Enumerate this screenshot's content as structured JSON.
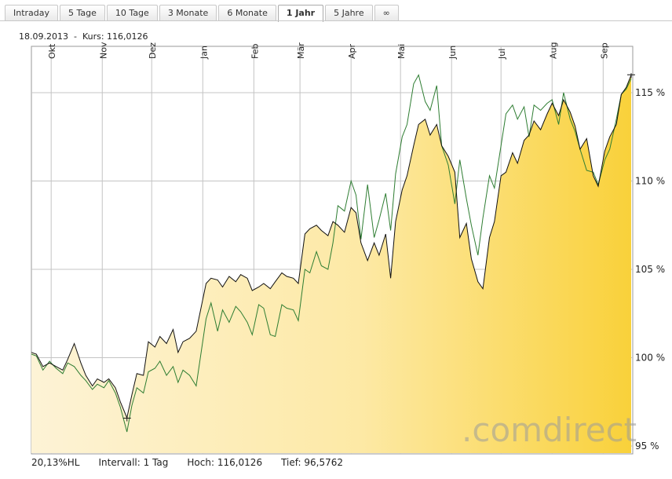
{
  "tabs": [
    {
      "label": "Intraday"
    },
    {
      "label": "5 Tage"
    },
    {
      "label": "10 Tage"
    },
    {
      "label": "3 Monate"
    },
    {
      "label": "6 Monate"
    },
    {
      "label": "1 Jahr",
      "active": true
    },
    {
      "label": "5 Jahre"
    },
    {
      "label": "∞"
    }
  ],
  "info": {
    "date": "18.09.2013",
    "kurs": "Kurs: 116,0126"
  },
  "footer": {
    "hl": "20,13%HL",
    "interval": "Intervall: 1 Tag",
    "high": "Hoch: 116,0126",
    "low": "Tief: 96,5762"
  },
  "watermark": {
    "text": ".comdirect"
  },
  "colors": {
    "main_line": "#111111",
    "compare_line": "#2e7d32",
    "fill_start": "#fdf3d6",
    "fill_end": "#f9d13a"
  },
  "chart_data": {
    "type": "area",
    "title": "",
    "xlabel": "",
    "ylabel": "",
    "x_range": [
      "2012-09-19",
      "2013-09-18"
    ],
    "ylim": [
      95,
      117
    ],
    "yticks": [
      95,
      100,
      105,
      110,
      115
    ],
    "ytick_labels": [
      "95 %",
      "100 %",
      "105 %",
      "110 %",
      "115 %"
    ],
    "months": [
      {
        "label": "Okt",
        "date": "2012-10-01"
      },
      {
        "label": "Nov",
        "date": "2012-11-01"
      },
      {
        "label": "Dez",
        "date": "2012-12-01"
      },
      {
        "label": "Jan",
        "date": "2013-01-01"
      },
      {
        "label": "Feb",
        "date": "2013-02-01"
      },
      {
        "label": "Mär",
        "date": "2013-03-01"
      },
      {
        "label": "Apr",
        "date": "2013-04-01"
      },
      {
        "label": "Mai",
        "date": "2013-05-01"
      },
      {
        "label": "Jun",
        "date": "2013-06-01"
      },
      {
        "label": "Jul",
        "date": "2013-07-01"
      },
      {
        "label": "Aug",
        "date": "2013-08-01"
      },
      {
        "label": "Sep",
        "date": "2013-09-01"
      }
    ],
    "grid": true,
    "series": [
      {
        "x": [
          "2012-09-19",
          "2012-09-22",
          "2012-09-26",
          "2012-09-30",
          "2012-10-04",
          "2012-10-08",
          "2012-10-11",
          "2012-10-15",
          "2012-10-19",
          "2012-10-22",
          "2012-10-26",
          "2012-10-29",
          "2012-11-02",
          "2012-11-05",
          "2012-11-09",
          "2012-11-12",
          "2012-11-16",
          "2012-11-19",
          "2012-11-22",
          "2012-11-26",
          "2012-11-29",
          "2012-12-03",
          "2012-12-06",
          "2012-12-10",
          "2012-12-14",
          "2012-12-17",
          "2012-12-20",
          "2012-12-24",
          "2012-12-28",
          "2013-01-03",
          "2013-01-06",
          "2013-01-10",
          "2013-01-13",
          "2013-01-17",
          "2013-01-21",
          "2013-01-24",
          "2013-01-28",
          "2013-01-31",
          "2013-02-04",
          "2013-02-07",
          "2013-02-11",
          "2013-02-14",
          "2013-02-18",
          "2013-02-21",
          "2013-02-25",
          "2013-02-28",
          "2013-03-04",
          "2013-03-07",
          "2013-03-11",
          "2013-03-14",
          "2013-03-18",
          "2013-03-21",
          "2013-03-24",
          "2013-03-28",
          "2013-04-01",
          "2013-04-04",
          "2013-04-07",
          "2013-04-11",
          "2013-04-15",
          "2013-04-18",
          "2013-04-22",
          "2013-04-25",
          "2013-04-28",
          "2013-05-02",
          "2013-05-05",
          "2013-05-09",
          "2013-05-12",
          "2013-05-16",
          "2013-05-19",
          "2013-05-23",
          "2013-05-26",
          "2013-05-30",
          "2013-06-03",
          "2013-06-06",
          "2013-06-10",
          "2013-06-13",
          "2013-06-17",
          "2013-06-20",
          "2013-06-24",
          "2013-06-27",
          "2013-07-01",
          "2013-07-04",
          "2013-07-08",
          "2013-07-11",
          "2013-07-15",
          "2013-07-18",
          "2013-07-21",
          "2013-07-25",
          "2013-07-29",
          "2013-08-01",
          "2013-08-05",
          "2013-08-08",
          "2013-08-12",
          "2013-08-15",
          "2013-08-18",
          "2013-08-22",
          "2013-08-26",
          "2013-08-29",
          "2013-09-02",
          "2013-09-05",
          "2013-09-09",
          "2013-09-12",
          "2013-09-15",
          "2013-09-18"
        ],
        "values": [
          100.3,
          100.2,
          99.5,
          99.7,
          99.5,
          99.3,
          99.9,
          100.8,
          99.7,
          99.0,
          98.4,
          98.8,
          98.6,
          98.8,
          98.3,
          97.5,
          96.6,
          97.9,
          99.1,
          99.0,
          100.9,
          100.6,
          101.2,
          100.8,
          101.6,
          100.3,
          100.9,
          101.1,
          101.5,
          104.2,
          104.5,
          104.4,
          104.0,
          104.6,
          104.3,
          104.7,
          104.5,
          103.8,
          104.0,
          104.2,
          103.9,
          104.3,
          104.8,
          104.6,
          104.5,
          104.2,
          107.0,
          107.3,
          107.5,
          107.2,
          106.9,
          107.7,
          107.5,
          107.1,
          108.5,
          108.2,
          106.5,
          105.5,
          106.5,
          105.8,
          107.0,
          104.5,
          107.7,
          109.5,
          110.3,
          112.0,
          113.2,
          113.5,
          112.6,
          113.2,
          112.0,
          111.4,
          110.5,
          106.8,
          107.6,
          105.6,
          104.3,
          103.9,
          106.8,
          107.7,
          110.3,
          110.5,
          111.6,
          111.0,
          112.3,
          112.6,
          113.4,
          112.9,
          113.8,
          114.4,
          113.7,
          114.6,
          113.9,
          113.1,
          111.8,
          112.4,
          110.3,
          109.7,
          111.7,
          112.5,
          113.2,
          114.9,
          115.3,
          116.0
        ]
      },
      {
        "x": [
          "2012-09-19",
          "2012-09-22",
          "2012-09-26",
          "2012-09-30",
          "2012-10-04",
          "2012-10-08",
          "2012-10-11",
          "2012-10-15",
          "2012-10-19",
          "2012-10-22",
          "2012-10-26",
          "2012-10-29",
          "2012-11-02",
          "2012-11-05",
          "2012-11-09",
          "2012-11-12",
          "2012-11-16",
          "2012-11-19",
          "2012-11-22",
          "2012-11-26",
          "2012-11-29",
          "2012-12-03",
          "2012-12-06",
          "2012-12-10",
          "2012-12-14",
          "2012-12-17",
          "2012-12-20",
          "2012-12-24",
          "2012-12-28",
          "2013-01-03",
          "2013-01-06",
          "2013-01-10",
          "2013-01-13",
          "2013-01-17",
          "2013-01-21",
          "2013-01-24",
          "2013-01-28",
          "2013-01-31",
          "2013-02-04",
          "2013-02-07",
          "2013-02-11",
          "2013-02-14",
          "2013-02-18",
          "2013-02-21",
          "2013-02-25",
          "2013-02-28",
          "2013-03-04",
          "2013-03-07",
          "2013-03-11",
          "2013-03-14",
          "2013-03-18",
          "2013-03-21",
          "2013-03-24",
          "2013-03-28",
          "2013-04-01",
          "2013-04-04",
          "2013-04-07",
          "2013-04-11",
          "2013-04-15",
          "2013-04-18",
          "2013-04-22",
          "2013-04-25",
          "2013-04-28",
          "2013-05-02",
          "2013-05-05",
          "2013-05-09",
          "2013-05-12",
          "2013-05-16",
          "2013-05-19",
          "2013-05-23",
          "2013-05-26",
          "2013-05-30",
          "2013-06-03",
          "2013-06-06",
          "2013-06-10",
          "2013-06-13",
          "2013-06-17",
          "2013-06-20",
          "2013-06-24",
          "2013-06-27",
          "2013-07-01",
          "2013-07-04",
          "2013-07-08",
          "2013-07-11",
          "2013-07-15",
          "2013-07-18",
          "2013-07-21",
          "2013-07-25",
          "2013-07-29",
          "2013-08-01",
          "2013-08-05",
          "2013-08-08",
          "2013-08-12",
          "2013-08-15",
          "2013-08-18",
          "2013-08-22",
          "2013-08-26",
          "2013-08-29",
          "2013-09-02",
          "2013-09-05",
          "2013-09-09",
          "2013-09-12",
          "2013-09-15",
          "2013-09-18"
        ],
        "values": [
          100.2,
          100.1,
          99.3,
          99.8,
          99.4,
          99.1,
          99.7,
          99.5,
          99.0,
          98.7,
          98.2,
          98.5,
          98.3,
          98.7,
          98.0,
          97.2,
          95.8,
          97.3,
          98.3,
          98.0,
          99.2,
          99.4,
          99.8,
          99.0,
          99.5,
          98.6,
          99.3,
          99.0,
          98.4,
          102.2,
          103.1,
          101.5,
          102.7,
          102.0,
          102.9,
          102.6,
          102.0,
          101.3,
          103.0,
          102.8,
          101.3,
          101.2,
          103.0,
          102.8,
          102.7,
          102.1,
          105.0,
          104.8,
          106.0,
          105.2,
          105.0,
          106.5,
          108.6,
          108.3,
          110.0,
          109.2,
          106.7,
          109.8,
          106.8,
          107.8,
          109.3,
          107.2,
          110.4,
          112.5,
          113.2,
          115.5,
          116.0,
          114.5,
          114.0,
          115.4,
          112.0,
          110.9,
          108.7,
          111.2,
          109.0,
          107.5,
          105.8,
          107.9,
          110.3,
          109.6,
          112.0,
          113.8,
          114.3,
          113.5,
          114.2,
          112.5,
          114.3,
          114.0,
          114.4,
          114.6,
          113.2,
          115.0,
          113.5,
          112.8,
          111.8,
          110.6,
          110.5,
          109.8,
          111.2,
          111.8,
          113.5,
          114.9,
          115.2,
          115.8
        ]
      }
    ],
    "markers": [
      {
        "label": "high",
        "date": "2013-09-18",
        "value": 116.0126
      },
      {
        "label": "low",
        "date": "2012-11-16",
        "value": 96.5762
      }
    ]
  }
}
